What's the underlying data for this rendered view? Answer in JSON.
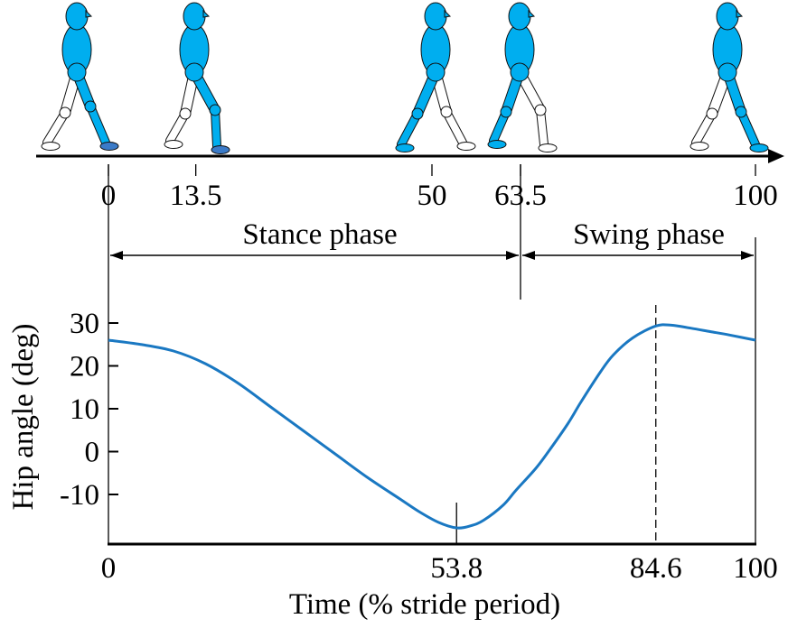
{
  "gait_ticks": [
    "0",
    "13.5",
    "50",
    "63.5",
    "100"
  ],
  "gait_tick_values": [
    0,
    13.5,
    50,
    63.5,
    100
  ],
  "phases": {
    "stance": "Stance phase",
    "swing": "Swing phase",
    "boundary": 63.5
  },
  "colors": {
    "body": "#00aeef",
    "foot": "#3b7bc8",
    "curve": "#1a78c2"
  },
  "chart_data": {
    "type": "line",
    "xlabel": "Time (% stride period)",
    "ylabel": "Hip angle (deg)",
    "xlim": [
      0,
      100
    ],
    "ylim": [
      -21.7,
      30
    ],
    "x_ticks": [
      "0",
      "53.8",
      "84.6",
      "100"
    ],
    "x_tick_values": [
      0,
      53.8,
      84.6,
      100
    ],
    "y_ticks": [
      "30",
      "20",
      "10",
      "0",
      "-10"
    ],
    "y_tick_values": [
      30,
      20,
      10,
      0,
      -10
    ],
    "markers": [
      {
        "x": 53.8,
        "style": "solid"
      },
      {
        "x": 84.6,
        "style": "dashed"
      }
    ],
    "series": [
      {
        "name": "hip angle",
        "x": [
          0,
          5,
          10,
          15,
          20,
          25,
          30,
          35,
          40,
          45,
          48,
          51,
          53.8,
          56,
          58,
          61,
          63,
          66,
          68,
          71,
          73,
          76,
          78,
          81,
          84.6,
          87,
          90,
          93,
          96,
          100
        ],
        "y": [
          26,
          25,
          23.5,
          20.5,
          16,
          10.5,
          5,
          -0.5,
          -6,
          -11,
          -14,
          -16.5,
          -17.8,
          -17.3,
          -16,
          -12.5,
          -9,
          -4,
          0,
          6.5,
          11.5,
          18.5,
          22.5,
          26.5,
          29.3,
          29.5,
          28.8,
          28,
          27.2,
          26
        ]
      }
    ]
  }
}
